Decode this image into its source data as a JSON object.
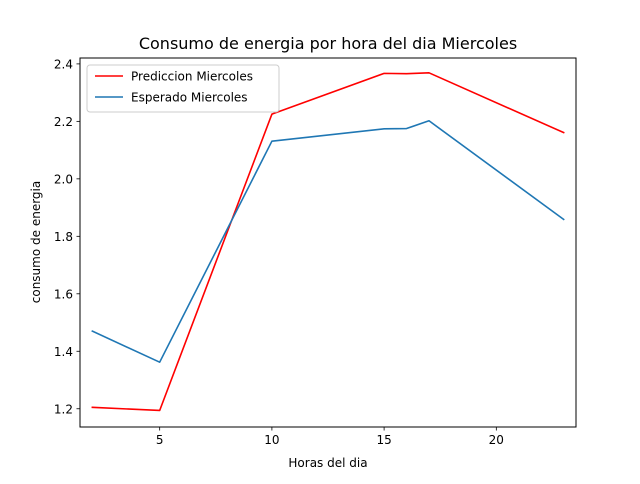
{
  "chart_data": {
    "type": "line",
    "title": "Consumo de energia por hora del dia Miercoles",
    "xlabel": "Horas del dia",
    "ylabel": "consumo de energia",
    "xlim": [
      1.45,
      23.55
    ],
    "ylim": [
      1.1365,
      2.4205
    ],
    "xticks": [
      5,
      10,
      15,
      20
    ],
    "xtick_labels": [
      "5",
      "10",
      "15",
      "20"
    ],
    "yticks": [
      1.2,
      1.4,
      1.6,
      1.8,
      2.0,
      2.2,
      2.4
    ],
    "ytick_labels": [
      "1.2",
      "1.4",
      "1.6",
      "1.8",
      "2.0",
      "2.2",
      "2.4"
    ],
    "grid": false,
    "legend_position": "upper-left",
    "series": [
      {
        "name": "Prediccion Miercoles",
        "color": "#ff0000",
        "x": [
          2,
          5,
          10,
          15,
          16,
          17,
          23
        ],
        "y": [
          1.205,
          1.194,
          2.225,
          2.367,
          2.366,
          2.369,
          2.161
        ]
      },
      {
        "name": "Esperado Miercoles",
        "color": "#1f77b4",
        "x": [
          2,
          5,
          10,
          15,
          16,
          17,
          23
        ],
        "y": [
          1.47,
          1.362,
          2.131,
          2.174,
          2.175,
          2.202,
          1.859
        ]
      }
    ]
  }
}
